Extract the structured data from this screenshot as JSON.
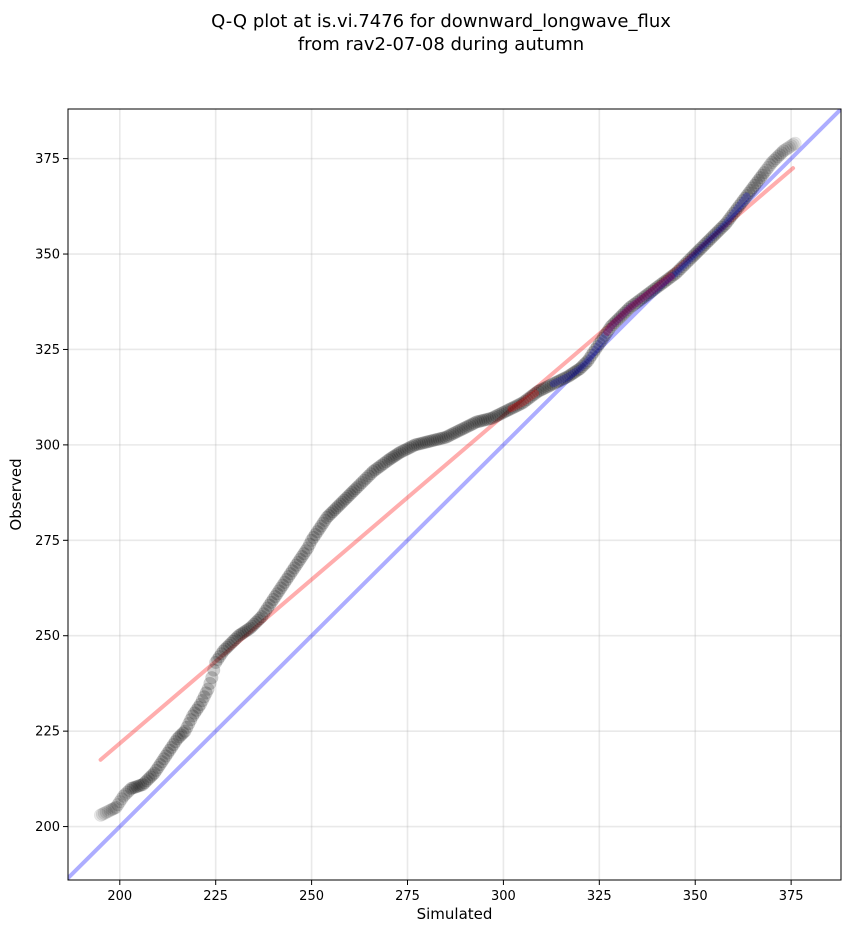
{
  "chart_data": {
    "type": "scatter",
    "title_lines": [
      "Q-Q plot at is.vi.7476 for downward_longwave_flux",
      "from rav2-07-08 during autumn"
    ],
    "xlabel": "Simulated",
    "ylabel": "Observed",
    "xlim": [
      186.5,
      388
    ],
    "ylim": [
      186,
      388
    ],
    "xticks": [
      200,
      225,
      250,
      275,
      300,
      325,
      350,
      375
    ],
    "yticks": [
      200,
      225,
      250,
      275,
      300,
      325,
      350,
      375
    ],
    "grid": true,
    "colors": {
      "points": "#000000",
      "one_to_one_line": "#0000ff",
      "fit_line": "#ff0000",
      "grid": "#b0b0b0"
    },
    "quantile_curve": {
      "x": [
        195,
        197,
        199,
        201,
        203,
        206,
        209,
        211,
        213,
        215,
        217,
        219,
        221,
        222,
        223,
        224,
        225,
        227,
        229,
        231,
        234,
        237,
        239,
        241,
        243,
        245,
        247,
        249,
        250,
        252,
        254,
        256,
        259,
        262,
        266,
        270,
        273,
        277,
        281,
        285,
        289,
        293,
        297,
        301,
        305,
        309,
        313,
        317,
        320,
        322,
        324,
        326,
        328,
        330,
        333,
        337,
        341,
        345,
        349,
        352,
        355,
        358,
        361,
        364,
        367,
        370,
        373,
        376
      ],
      "y": [
        203,
        204,
        205,
        208,
        210,
        211,
        214,
        217,
        220,
        223,
        225,
        229,
        232,
        234,
        236,
        239,
        243,
        246,
        248,
        250,
        252,
        255,
        258,
        261,
        264,
        267,
        270,
        273,
        275,
        278,
        281,
        283,
        286,
        289,
        293,
        296,
        298,
        300,
        301,
        302,
        304,
        306,
        307,
        309,
        311,
        314,
        316,
        318,
        320,
        322,
        325,
        328,
        331,
        333,
        336,
        339,
        342,
        345,
        349,
        352,
        355,
        358,
        362,
        366,
        370,
        374,
        377,
        379
      ]
    },
    "highlighted_segments": {
      "red": [
        [
          302,
          309
        ],
        [
          327,
          344
        ]
      ],
      "blue": [
        [
          313,
          364
        ]
      ]
    },
    "one_to_one_line": {
      "x": [
        186.5,
        388
      ],
      "y": [
        186.5,
        388
      ]
    },
    "fit_line": {
      "x": [
        195,
        375.5
      ],
      "y": [
        217.5,
        372.5
      ]
    }
  }
}
